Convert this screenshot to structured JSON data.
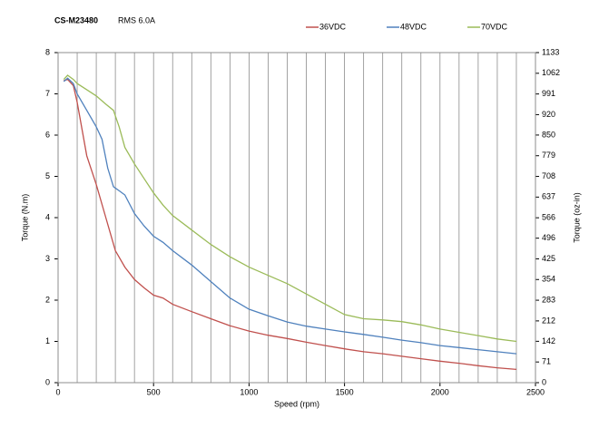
{
  "chart_data": {
    "type": "line",
    "title": "CS-M23480",
    "subtitle": "RMS 6.0A",
    "x_label": "Speed (rpm)",
    "y_label": "Torque (N.m)",
    "y2_label": "Torque (oz-in)",
    "xlim": [
      0,
      2500
    ],
    "xticks": [
      0,
      500,
      1000,
      1500,
      2000,
      2500
    ],
    "x_minor_ticks": [
      100,
      200,
      300,
      400,
      600,
      700,
      800,
      900,
      1100,
      1200,
      1300,
      1400,
      1600,
      1700,
      1800,
      1900,
      2100,
      2200,
      2300,
      2400
    ],
    "ylim": [
      0,
      8
    ],
    "yticks": [
      0,
      1,
      2,
      3,
      4,
      5,
      6,
      7,
      8
    ],
    "y2lim": [
      0,
      1133
    ],
    "y2ticks": [
      0,
      71,
      142,
      212,
      283,
      354,
      425,
      496,
      566,
      637,
      708,
      779,
      850,
      920,
      991,
      1062,
      1133
    ],
    "grid": true,
    "series": [
      {
        "name": "36VDC",
        "color": "#c0504d",
        "x": [
          30,
          50,
          80,
          100,
          150,
          200,
          250,
          300,
          350,
          400,
          450,
          500,
          550,
          600,
          700,
          800,
          900,
          1000,
          1100,
          1200,
          1300,
          1400,
          1500,
          1600,
          1700,
          1800,
          1900,
          2000,
          2100,
          2200,
          2300,
          2400
        ],
        "values": [
          7.32,
          7.35,
          7.2,
          6.8,
          5.5,
          4.8,
          4.0,
          3.2,
          2.8,
          2.5,
          2.3,
          2.12,
          2.05,
          1.9,
          1.72,
          1.55,
          1.38,
          1.25,
          1.15,
          1.07,
          0.98,
          0.9,
          0.82,
          0.75,
          0.7,
          0.64,
          0.58,
          0.52,
          0.47,
          0.41,
          0.36,
          0.32
        ]
      },
      {
        "name": "48VDC",
        "color": "#4f81bd",
        "x": [
          30,
          50,
          80,
          100,
          150,
          200,
          230,
          260,
          290,
          320,
          350,
          400,
          450,
          500,
          550,
          600,
          700,
          800,
          900,
          1000,
          1100,
          1200,
          1300,
          1400,
          1500,
          1600,
          1700,
          1800,
          1900,
          2000,
          2100,
          2200,
          2300,
          2400
        ],
        "values": [
          7.3,
          7.38,
          7.25,
          7.0,
          6.6,
          6.2,
          5.9,
          5.2,
          4.75,
          4.65,
          4.55,
          4.1,
          3.8,
          3.55,
          3.4,
          3.2,
          2.85,
          2.45,
          2.05,
          1.78,
          1.62,
          1.47,
          1.37,
          1.3,
          1.23,
          1.17,
          1.1,
          1.03,
          0.97,
          0.9,
          0.85,
          0.8,
          0.75,
          0.7
        ]
      },
      {
        "name": "70VDC",
        "color": "#9bbb59",
        "x": [
          30,
          50,
          80,
          100,
          150,
          200,
          250,
          290,
          320,
          350,
          400,
          450,
          500,
          550,
          600,
          700,
          800,
          900,
          1000,
          1100,
          1200,
          1300,
          1400,
          1500,
          1600,
          1700,
          1800,
          1900,
          2000,
          2100,
          2200,
          2300,
          2400
        ],
        "values": [
          7.35,
          7.45,
          7.35,
          7.25,
          7.1,
          6.95,
          6.75,
          6.6,
          6.2,
          5.7,
          5.3,
          4.95,
          4.6,
          4.3,
          4.05,
          3.7,
          3.35,
          3.05,
          2.8,
          2.6,
          2.4,
          2.15,
          1.9,
          1.65,
          1.55,
          1.52,
          1.48,
          1.4,
          1.3,
          1.22,
          1.14,
          1.06,
          1.0
        ]
      }
    ]
  }
}
